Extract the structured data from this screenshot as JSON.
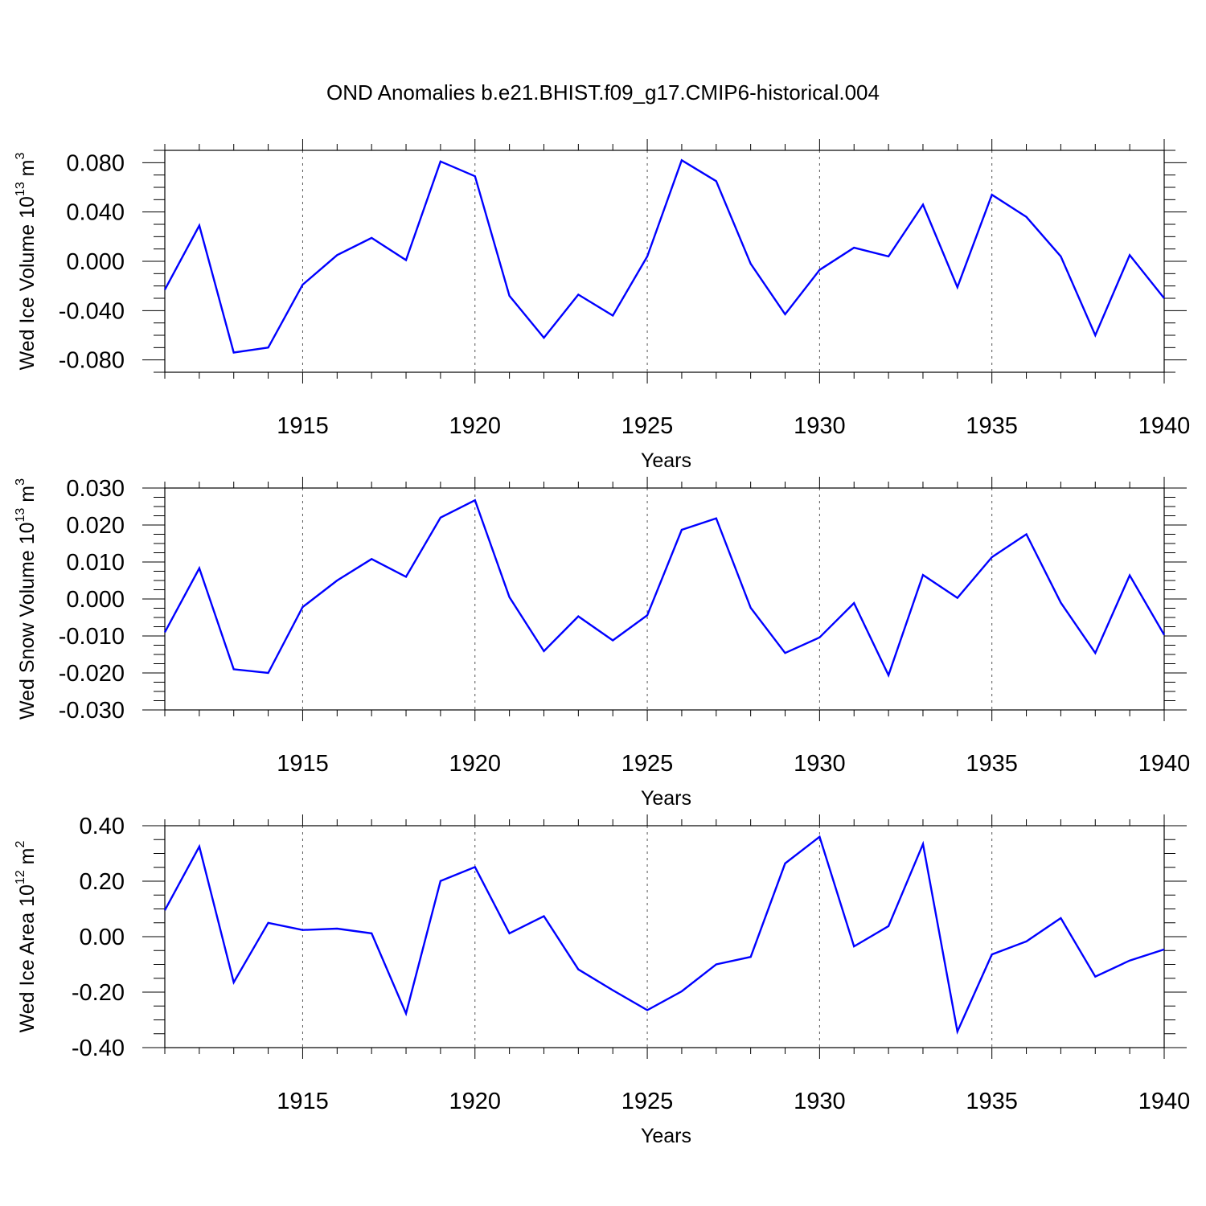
{
  "title": "OND Anomalies b.e21.BHIST.f09_g17.CMIP6-historical.004",
  "chart_data": [
    {
      "type": "line",
      "ylabel": {
        "text": "Wed Ice Volume 10",
        "sup": "13",
        "unit": " m",
        "unit_sup": "3"
      },
      "xlabel": "Years",
      "xlim": [
        1911,
        1940
      ],
      "ylim": [
        -0.09,
        0.09
      ],
      "yticks": [
        -0.08,
        -0.04,
        0.0,
        0.04,
        0.08
      ],
      "ytick_labels": [
        "-0.080",
        "-0.040",
        "0.000",
        "0.040",
        "0.080"
      ],
      "xticks": [
        1915,
        1920,
        1925,
        1930,
        1935,
        1940
      ],
      "xtick_labels": [
        "1915",
        "1920",
        "1925",
        "1930",
        "1935",
        "1940"
      ],
      "grid": "vertical-dashed",
      "color": "#0000ff",
      "x": [
        1911,
        1912,
        1913,
        1914,
        1915,
        1916,
        1917,
        1918,
        1919,
        1920,
        1921,
        1922,
        1923,
        1924,
        1925,
        1926,
        1927,
        1928,
        1929,
        1930,
        1931,
        1932,
        1933,
        1934,
        1935,
        1936,
        1937,
        1938,
        1939,
        1940
      ],
      "values": [
        -0.023,
        0.029,
        -0.074,
        -0.07,
        -0.019,
        0.005,
        0.019,
        0.001,
        0.081,
        0.069,
        -0.028,
        -0.062,
        -0.027,
        -0.044,
        0.004,
        0.082,
        0.065,
        -0.002,
        -0.043,
        -0.007,
        0.011,
        0.004,
        0.046,
        -0.021,
        0.054,
        0.036,
        0.004,
        -0.06,
        0.005,
        -0.03
      ]
    },
    {
      "type": "line",
      "ylabel": {
        "text": "Wed Snow Volume 10",
        "sup": "13",
        "unit": " m",
        "unit_sup": "3"
      },
      "xlabel": "Years",
      "xlim": [
        1911,
        1940
      ],
      "ylim": [
        -0.03,
        0.03
      ],
      "yticks": [
        -0.03,
        -0.02,
        -0.01,
        0.0,
        0.01,
        0.02,
        0.03
      ],
      "ytick_labels": [
        "-0.030",
        "-0.020",
        "-0.010",
        "0.000",
        "0.010",
        "0.020",
        "0.030"
      ],
      "xticks": [
        1915,
        1920,
        1925,
        1930,
        1935,
        1940
      ],
      "xtick_labels": [
        "1915",
        "1920",
        "1925",
        "1930",
        "1935",
        "1940"
      ],
      "grid": "vertical-dashed",
      "color": "#0000ff",
      "x": [
        1911,
        1912,
        1913,
        1914,
        1915,
        1916,
        1917,
        1918,
        1919,
        1920,
        1921,
        1922,
        1923,
        1924,
        1925,
        1926,
        1927,
        1928,
        1929,
        1930,
        1931,
        1932,
        1933,
        1934,
        1935,
        1936,
        1937,
        1938,
        1939,
        1940
      ],
      "values": [
        -0.009,
        0.0083,
        -0.019,
        -0.02,
        -0.0022,
        0.005,
        0.0108,
        0.006,
        0.022,
        0.0267,
        0.0005,
        -0.0141,
        -0.0047,
        -0.0112,
        -0.0044,
        0.0187,
        0.0218,
        -0.0024,
        -0.0146,
        -0.0104,
        -0.0011,
        -0.0206,
        0.0065,
        0.0003,
        0.0113,
        0.0175,
        -0.001,
        -0.0146,
        0.0064,
        -0.0097
      ]
    },
    {
      "type": "line",
      "ylabel": {
        "text": "Wed Ice Area 10",
        "sup": "12",
        "unit": " m",
        "unit_sup": "2"
      },
      "xlabel": "Years",
      "xlim": [
        1911,
        1940
      ],
      "ylim": [
        -0.4,
        0.4
      ],
      "yticks": [
        -0.4,
        -0.2,
        0.0,
        0.2,
        0.4
      ],
      "ytick_labels": [
        "-0.40",
        "-0.20",
        "0.00",
        "0.20",
        "0.40"
      ],
      "xticks": [
        1915,
        1920,
        1925,
        1930,
        1935,
        1940
      ],
      "xtick_labels": [
        "1915",
        "1920",
        "1925",
        "1930",
        "1935",
        "1940"
      ],
      "grid": "vertical-dashed",
      "color": "#0000ff",
      "x": [
        1911,
        1912,
        1913,
        1914,
        1915,
        1916,
        1917,
        1918,
        1919,
        1920,
        1921,
        1922,
        1923,
        1924,
        1925,
        1926,
        1927,
        1928,
        1929,
        1930,
        1931,
        1932,
        1933,
        1934,
        1935,
        1936,
        1937,
        1938,
        1939,
        1940
      ],
      "values": [
        0.095,
        0.325,
        -0.165,
        0.05,
        0.024,
        0.029,
        0.012,
        -0.277,
        0.201,
        0.251,
        0.012,
        0.074,
        -0.118,
        -0.193,
        -0.265,
        -0.197,
        -0.1,
        -0.073,
        0.264,
        0.36,
        -0.035,
        0.038,
        0.334,
        -0.342,
        -0.064,
        -0.017,
        0.067,
        -0.144,
        -0.086,
        -0.046
      ]
    }
  ]
}
